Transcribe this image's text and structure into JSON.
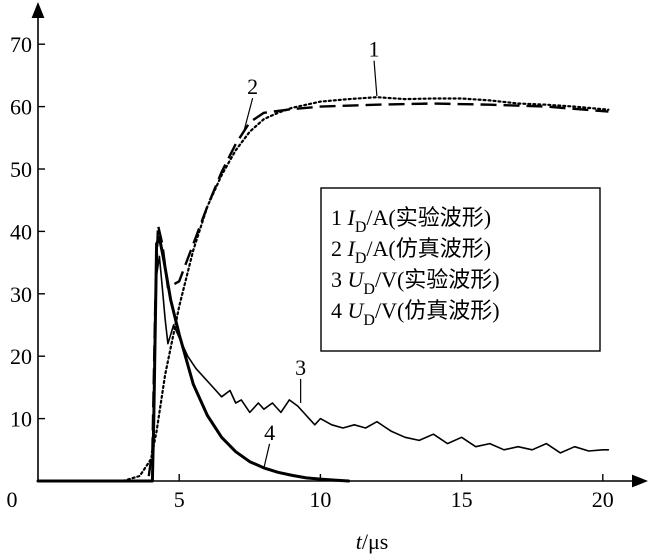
{
  "chart_data": {
    "type": "line",
    "title": "",
    "xlabel_italic": "t",
    "xlabel_unit": "/μs",
    "ylabel": "",
    "xlim": [
      0,
      21.5
    ],
    "ylim": [
      0,
      75
    ],
    "x_ticks": [
      0,
      5,
      10,
      15,
      20
    ],
    "y_ticks": [
      10,
      20,
      30,
      40,
      50,
      60,
      70
    ],
    "x_tick_labels": [
      "0",
      "5",
      "10",
      "15",
      "20"
    ],
    "y_tick_labels": [
      "10",
      "20",
      "30",
      "40",
      "50",
      "60",
      "70"
    ],
    "grid": false,
    "legend_position": "right-middle",
    "legend": [
      {
        "num": "1",
        "sym": "I",
        "sub": "D",
        "unit": "/A",
        "desc": "(实验波形)"
      },
      {
        "num": "2",
        "sym": "I",
        "sub": "D",
        "unit": "/A",
        "desc": "(仿真波形)"
      },
      {
        "num": "3",
        "sym": "U",
        "sub": "D",
        "unit": "/V",
        "desc": "(实验波形)"
      },
      {
        "num": "4",
        "sym": "U",
        "sub": "D",
        "unit": "/V",
        "desc": "(仿真波形)"
      }
    ],
    "series": [
      {
        "id": "1",
        "style": "dotted",
        "x": [
          0,
          3.0,
          3.6,
          4.0,
          4.2,
          4.5,
          5.0,
          5.5,
          6.0,
          6.5,
          7.0,
          7.5,
          8.0,
          8.5,
          9.0,
          10.0,
          11.0,
          12.0,
          13.0,
          14.0,
          15.0,
          16.0,
          17.0,
          18.0,
          19.0,
          20.2
        ],
        "y": [
          0,
          0,
          0.8,
          3.5,
          8,
          17,
          28,
          37,
          44,
          49,
          53,
          56,
          58,
          59,
          59.8,
          60.8,
          61.2,
          61.5,
          61.2,
          61.3,
          61.3,
          61,
          60.5,
          60.3,
          60,
          59.5
        ]
      },
      {
        "id": "2",
        "style": "dashed",
        "x": [
          0,
          3.9,
          4.05,
          4.15,
          4.25,
          4.4,
          4.6,
          5.0,
          5.5,
          6.0,
          6.5,
          7.0,
          7.5,
          8.0,
          9.0,
          10.0,
          12.0,
          14.0,
          16.0,
          18.0,
          20.2
        ],
        "y": [
          0,
          0,
          5,
          28,
          41,
          38,
          31,
          32,
          38,
          44,
          49.5,
          54,
          57.5,
          59,
          59.6,
          60,
          60.3,
          60.5,
          60.3,
          60,
          59.2
        ]
      },
      {
        "id": "3",
        "style": "solid",
        "x": [
          0,
          4.05,
          4.12,
          4.2,
          4.3,
          4.4,
          4.5,
          4.6,
          4.8,
          5.0,
          5.3,
          5.6,
          5.9,
          6.2,
          6.5,
          6.8,
          7.0,
          7.2,
          7.5,
          7.8,
          8.0,
          8.3,
          8.6,
          8.9,
          9.2,
          9.5,
          9.8,
          10.0,
          10.4,
          10.8,
          11.2,
          11.6,
          12.0,
          12.5,
          13.0,
          13.5,
          14.0,
          14.5,
          15.0,
          15.5,
          16.0,
          16.5,
          17.0,
          17.5,
          18.0,
          18.5,
          19.0,
          19.5,
          20.0,
          20.2
        ],
        "y": [
          0,
          0,
          16,
          33,
          36,
          31,
          26,
          22,
          25,
          23,
          20,
          18,
          16.5,
          15,
          13.5,
          14.5,
          12.5,
          13,
          11,
          12.5,
          11.5,
          12.5,
          11,
          13,
          12,
          10.5,
          9,
          10,
          9,
          8.5,
          9,
          8.5,
          9.5,
          8,
          7,
          6.5,
          7.5,
          6,
          7,
          5.5,
          6,
          5,
          5.5,
          5,
          6,
          4.5,
          5.5,
          4.8,
          5,
          5
        ]
      },
      {
        "id": "4",
        "style": "solid-bold",
        "x": [
          0,
          4.05,
          4.1,
          4.2,
          4.3,
          4.45,
          4.7,
          5.0,
          5.5,
          6.0,
          6.5,
          7.0,
          7.5,
          8.0,
          8.5,
          9.0,
          9.5,
          10.0,
          10.5,
          11.0
        ],
        "y": [
          0,
          0,
          10,
          38,
          39,
          35.5,
          29,
          23.5,
          15.5,
          10.5,
          7,
          4.7,
          3.1,
          2.1,
          1.4,
          0.9,
          0.5,
          0.3,
          0.15,
          0
        ]
      }
    ],
    "annotations": [
      {
        "label": "1",
        "x": 12.0,
        "y": 61.7,
        "tx": 11.9,
        "ty": 68.0
      },
      {
        "label": "2",
        "x": 7.3,
        "y": 56.2,
        "tx": 7.6,
        "ty": 62.0
      },
      {
        "label": "3",
        "x": 9.3,
        "y": 12.5,
        "tx": 9.3,
        "ty": 17.0
      },
      {
        "label": "4",
        "x": 8.0,
        "y": 2.1,
        "tx": 8.2,
        "ty": 6.6
      }
    ]
  }
}
